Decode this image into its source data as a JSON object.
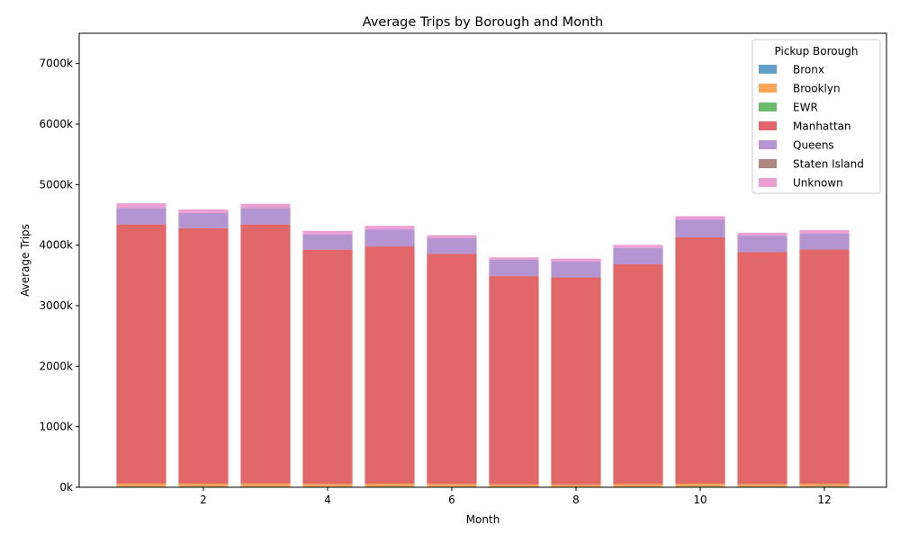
{
  "chart_data": {
    "type": "bar",
    "stacked": true,
    "title": "Average Trips by Borough and Month",
    "xlabel": "Month",
    "ylabel": "Average Trips",
    "x": [
      1,
      2,
      3,
      4,
      5,
      6,
      7,
      8,
      9,
      10,
      11,
      12
    ],
    "x_ticks": [
      2,
      4,
      6,
      8,
      10,
      12
    ],
    "ylim": [
      0,
      7500000
    ],
    "y_ticks": [
      0,
      1000000,
      2000000,
      3000000,
      4000000,
      5000000,
      6000000,
      7000000
    ],
    "y_tick_labels": [
      "0k",
      "1000k",
      "2000k",
      "3000k",
      "4000k",
      "5000k",
      "6000k",
      "7000k"
    ],
    "grid": false,
    "legend": {
      "title": "Pickup Borough",
      "position": "top-right"
    },
    "series": [
      {
        "name": "Bronx",
        "color": "#1f77b4",
        "values": [
          10000,
          10000,
          10000,
          9000,
          10000,
          9000,
          8000,
          8000,
          9000,
          10000,
          9000,
          10000
        ]
      },
      {
        "name": "Brooklyn",
        "color": "#ff7f0e",
        "values": [
          50000,
          48000,
          50000,
          46000,
          48000,
          45000,
          40000,
          38000,
          44000,
          48000,
          45000,
          47000
        ]
      },
      {
        "name": "EWR",
        "color": "#2ca02c",
        "values": [
          500,
          500,
          500,
          500,
          500,
          500,
          500,
          500,
          500,
          500,
          500,
          500
        ]
      },
      {
        "name": "Manhattan",
        "color": "#d62728",
        "values": [
          4280000,
          4220000,
          4280000,
          3870000,
          3920000,
          3800000,
          3440000,
          3420000,
          3630000,
          4070000,
          3830000,
          3870000
        ]
      },
      {
        "name": "Queens",
        "color": "#9467bd",
        "values": [
          270000,
          250000,
          270000,
          250000,
          280000,
          260000,
          270000,
          260000,
          270000,
          290000,
          270000,
          260000
        ]
      },
      {
        "name": "Staten Island",
        "color": "#8c564b",
        "values": [
          500,
          500,
          500,
          500,
          500,
          500,
          500,
          500,
          500,
          500,
          500,
          500
        ]
      },
      {
        "name": "Unknown",
        "color": "#e377c2",
        "values": [
          80000,
          60000,
          70000,
          60000,
          60000,
          50000,
          40000,
          50000,
          50000,
          60000,
          50000,
          60000
        ]
      }
    ]
  }
}
